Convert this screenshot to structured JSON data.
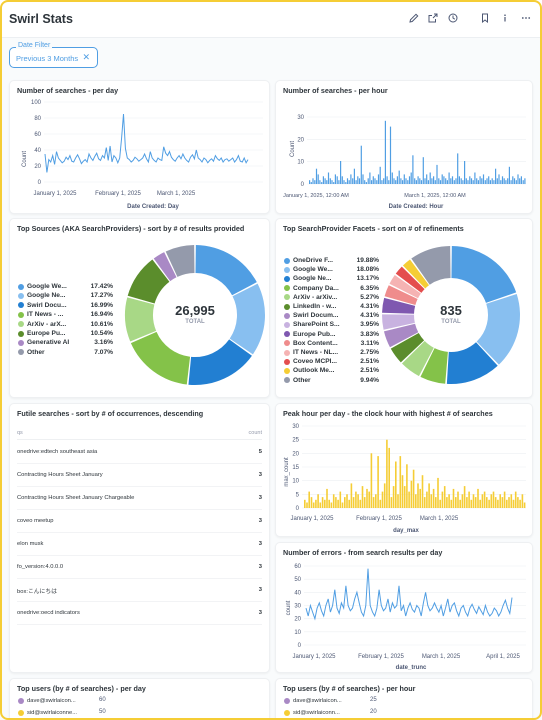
{
  "dashboard": {
    "title": "Swirl Stats"
  },
  "header_icons": [
    "pencil-icon",
    "share-icon",
    "clock-icon",
    "bookmark-icon",
    "info-icon",
    "more-icon"
  ],
  "filter": {
    "label": "Date Filter",
    "value": "Previous 3 Months",
    "clear": "✕"
  },
  "colors": {
    "accent": "#509ee3",
    "yellow": "#f5cd35",
    "text": "#2e353b"
  },
  "cards": {
    "searches_day": {
      "title": "Number of searches - per day",
      "ylabel": "Count",
      "xlabel": "Date Created: Day",
      "yticks": [
        "100",
        "80",
        "60",
        "40",
        "20",
        "0"
      ],
      "xticks": [
        "January 1, 2025",
        "February 1, 2025",
        "March 1, 2025"
      ]
    },
    "searches_hour": {
      "title": "Number of searches - per hour",
      "ylabel": "Count",
      "xlabel": "Date Created: Hour",
      "yticks": [
        "30",
        "20",
        "10",
        "0"
      ],
      "xticks": [
        "January 1, 2025, 12:00 AM",
        "March 1, 2025, 12:00 AM"
      ]
    },
    "top_sources": {
      "title": "Top Sources (AKA SearchProviders) - sort by # of results provided",
      "total_value": "26,995",
      "total_label": "TOTAL",
      "legend": [
        {
          "name": "Google We...",
          "pct": "17.42%",
          "color": "#509ee3"
        },
        {
          "name": "Google Ne...",
          "pct": "17.27%",
          "color": "#88bff0"
        },
        {
          "name": "Swirl Docu...",
          "pct": "16.99%",
          "color": "#227fd2"
        },
        {
          "name": "IT News - ...",
          "pct": "16.94%",
          "color": "#84c249"
        },
        {
          "name": "ArXiv - arX...",
          "pct": "10.61%",
          "color": "#a8d886"
        },
        {
          "name": "Europe Pu...",
          "pct": "10.54%",
          "color": "#5b8d2c"
        },
        {
          "name": "Generative AI",
          "pct": "3.16%",
          "color": "#a989c5"
        },
        {
          "name": "Other",
          "pct": "7.07%",
          "color": "#949aab"
        }
      ]
    },
    "top_facets": {
      "title": "Top SearchProvider Facets - sort on # of refinements",
      "total_value": "835",
      "total_label": "TOTAL",
      "legend": [
        {
          "name": "OneDrive F...",
          "pct": "19.88%",
          "color": "#509ee3"
        },
        {
          "name": "Google We...",
          "pct": "18.08%",
          "color": "#88bff0"
        },
        {
          "name": "Google Ne...",
          "pct": "13.17%",
          "color": "#227fd2"
        },
        {
          "name": "Company Da...",
          "pct": "6.35%",
          "color": "#84c249"
        },
        {
          "name": "ArXiv - arXiv...",
          "pct": "5.27%",
          "color": "#a8d886"
        },
        {
          "name": "LinkedIn - w...",
          "pct": "4.31%",
          "color": "#5b8d2c"
        },
        {
          "name": "Swirl Docum...",
          "pct": "4.31%",
          "color": "#a989c5"
        },
        {
          "name": "SharePoint S...",
          "pct": "3.95%",
          "color": "#c8b2e0"
        },
        {
          "name": "Europe Pub...",
          "pct": "3.83%",
          "color": "#7f58b0"
        },
        {
          "name": "Box Content...",
          "pct": "3.11%",
          "color": "#ef8c8c"
        },
        {
          "name": "IT News - NL...",
          "pct": "2.75%",
          "color": "#f5b3b3"
        },
        {
          "name": "Coveo MCPI...",
          "pct": "2.51%",
          "color": "#e44e4e"
        },
        {
          "name": "Outlook Me...",
          "pct": "2.51%",
          "color": "#f5cd35"
        },
        {
          "name": "Other",
          "pct": "9.94%",
          "color": "#949aab"
        }
      ]
    },
    "futile": {
      "title": "Futile searches - sort by # of occurrences, descending",
      "col_qs": "qs",
      "col_count": "count",
      "rows": [
        {
          "q": "onedrive:edtech southeast asia",
          "count": "5"
        },
        {
          "q": "Contracting Hours Sheet January",
          "count": "3"
        },
        {
          "q": "Contracting Hours Sheet January Chargeable",
          "count": "3"
        },
        {
          "q": "coveo meetup",
          "count": "3"
        },
        {
          "q": "elon musk",
          "count": "3"
        },
        {
          "q": "fo_version:4.0.0.0",
          "count": "3"
        },
        {
          "q": "box:こんにちは",
          "count": "3"
        },
        {
          "q": "onedrive:oecd indicators",
          "count": "3"
        }
      ]
    },
    "peak_hour": {
      "title": "Peak hour per day - the clock hour with highest # of searches",
      "ylabel": "max_count",
      "xlabel": "day_max",
      "yticks": [
        "30",
        "25",
        "20",
        "15",
        "10",
        "5",
        "0"
      ],
      "xticks": [
        "January 1, 2025",
        "February 1, 2025",
        "March 1, 2025"
      ]
    },
    "errors": {
      "title": "Number of errors - from search results per day",
      "ylabel": "count",
      "xlabel": "date_trunc",
      "yticks": [
        "60",
        "50",
        "40",
        "30",
        "20",
        "10",
        "0"
      ],
      "xticks": [
        "January 1, 2025",
        "February 1, 2025",
        "March 1, 2025",
        "April 1, 2025"
      ]
    },
    "users_day": {
      "title": "Top users (by # of searches) - per day",
      "users": [
        {
          "name": "dave@swirlaicon...",
          "color": "#a989c5"
        },
        {
          "name": "sid@swirlaiconne...",
          "color": "#f5cd35"
        }
      ],
      "yticks": [
        "60",
        "50"
      ]
    },
    "users_hour": {
      "title": "Top users (by # of searches) - per hour",
      "users": [
        {
          "name": "dave@swirlaicon...",
          "color": "#a989c5"
        },
        {
          "name": "sid@swirlaiconn...",
          "color": "#f5cd35"
        }
      ],
      "yticks": [
        "25",
        "20"
      ]
    }
  },
  "chart_data": [
    {
      "type": "line",
      "title": "Number of searches - per day",
      "xlabel": "Date Created: Day",
      "ylabel": "Count",
      "ylim": [
        0,
        100
      ],
      "x_start": "2024-12-15",
      "x_end": "2025-03-31",
      "series": [
        {
          "values": [
            35,
            12,
            28,
            25,
            33,
            22,
            38,
            30,
            27,
            24,
            26,
            31,
            28,
            33,
            26,
            25,
            30,
            34,
            29,
            23,
            26,
            28,
            25,
            35,
            30,
            27,
            32,
            36,
            29,
            27,
            33,
            30,
            43,
            27,
            45,
            25,
            33,
            30,
            24,
            30,
            55,
            85,
            42,
            30,
            28,
            25,
            27,
            31,
            29,
            26,
            28,
            30,
            35,
            29,
            25,
            38,
            30,
            27,
            25,
            30,
            28,
            27,
            44,
            36,
            33,
            38,
            31,
            28,
            26,
            30,
            33,
            29,
            35,
            30,
            27,
            25,
            31,
            34,
            29,
            40,
            30,
            28,
            25,
            30,
            28,
            24,
            27,
            29,
            26,
            33,
            29,
            27,
            30,
            25,
            28,
            29,
            26,
            28,
            30,
            25,
            28,
            33,
            26,
            25,
            30,
            24,
            28
          ]
        }
      ]
    },
    {
      "type": "bar",
      "title": "Number of searches - per hour",
      "xlabel": "Date Created: Hour",
      "ylabel": "Count",
      "ylim": [
        0,
        35
      ],
      "series": [
        {
          "values": [
            2,
            1,
            3,
            2,
            8,
            5,
            2,
            1,
            4,
            3,
            2,
            6,
            3,
            2,
            1,
            5,
            4,
            2,
            12,
            4,
            2,
            1,
            3,
            2,
            5,
            3,
            8,
            2,
            4,
            3,
            20,
            5,
            2,
            1,
            3,
            6,
            2,
            4,
            3,
            2,
            5,
            9,
            2,
            3,
            33,
            4,
            2,
            30,
            6,
            3,
            2,
            4,
            7,
            3,
            2,
            5,
            3,
            2,
            4,
            6,
            15,
            3,
            2,
            4,
            3,
            2,
            14,
            3,
            5,
            2,
            6,
            3,
            4,
            2,
            10,
            3,
            2,
            5,
            4,
            3,
            2,
            6,
            3,
            4,
            2,
            3,
            16,
            4,
            3,
            2,
            12,
            3,
            2,
            4,
            3,
            2,
            6,
            3,
            2,
            4,
            3,
            5,
            2,
            3,
            4,
            2,
            3,
            2,
            8,
            3,
            5,
            2,
            4,
            3,
            2,
            3,
            9,
            2,
            4,
            3,
            2,
            5,
            3,
            4,
            2,
            3
          ]
        }
      ]
    },
    {
      "type": "pie",
      "title": "Top Sources (AKA SearchProviders) - sort by # of results provided",
      "total": "26,995",
      "labels": [
        "Google We...",
        "Google Ne...",
        "Swirl Docu...",
        "IT News - ...",
        "ArXiv - arX...",
        "Europe Pu...",
        "Generative AI",
        "Other"
      ],
      "values": [
        17.42,
        17.27,
        16.99,
        16.94,
        10.61,
        10.54,
        3.16,
        7.07
      ]
    },
    {
      "type": "pie",
      "title": "Top SearchProvider Facets - sort on # of refinements",
      "total": "835",
      "labels": [
        "OneDrive F...",
        "Google We...",
        "Google Ne...",
        "Company Da...",
        "ArXiv - arXiv...",
        "LinkedIn - w...",
        "Swirl Docum...",
        "SharePoint S...",
        "Europe Pub...",
        "Box Content...",
        "IT News - NL...",
        "Coveo MCPI...",
        "Outlook Me...",
        "Other"
      ],
      "values": [
        19.88,
        18.08,
        13.17,
        6.35,
        5.27,
        4.31,
        4.31,
        3.95,
        3.83,
        3.11,
        2.75,
        2.51,
        2.51,
        9.94
      ]
    },
    {
      "type": "bar",
      "title": "Peak hour per day - the clock hour with highest # of searches",
      "xlabel": "day_max",
      "ylabel": "max_count",
      "ylim": [
        0,
        30
      ],
      "series": [
        {
          "values": [
            3,
            2,
            6,
            4,
            2,
            3,
            5,
            2,
            4,
            3,
            7,
            3,
            2,
            5,
            4,
            3,
            6,
            2,
            4,
            5,
            3,
            9,
            4,
            6,
            5,
            3,
            8,
            4,
            7,
            6,
            20,
            4,
            5,
            19,
            3,
            6,
            9,
            25,
            22,
            4,
            8,
            17,
            5,
            19,
            12,
            8,
            16,
            6,
            10,
            14,
            5,
            9,
            7,
            12,
            4,
            6,
            9,
            5,
            7,
            4,
            11,
            3,
            6,
            8,
            4,
            5,
            3,
            7,
            4,
            6,
            3,
            5,
            8,
            4,
            6,
            3,
            5,
            4,
            7,
            3,
            5,
            6,
            4,
            3,
            5,
            6,
            4,
            3,
            5,
            4,
            6,
            3,
            4,
            5,
            3,
            6,
            4,
            3,
            5,
            2
          ]
        }
      ]
    },
    {
      "type": "line",
      "title": "Number of errors - from search results per day",
      "xlabel": "date_trunc",
      "ylabel": "count",
      "ylim": [
        0,
        60
      ],
      "series": [
        {
          "values": [
            28,
            22,
            30,
            25,
            20,
            28,
            32,
            26,
            22,
            30,
            35,
            25,
            30,
            42,
            28,
            24,
            32,
            28,
            45,
            30,
            26,
            28,
            35,
            40,
            32,
            25,
            22,
            30,
            58,
            30,
            25,
            22,
            28,
            42,
            30,
            26,
            28,
            35,
            25,
            32,
            28,
            30,
            45,
            26,
            30,
            22,
            28,
            32,
            27,
            25,
            30,
            28,
            22,
            32,
            40,
            30,
            26,
            28,
            32,
            28,
            25,
            30,
            22,
            28,
            35,
            25,
            30,
            32,
            26,
            22,
            28,
            30,
            25,
            22,
            28,
            31,
            27,
            24,
            29,
            26,
            23,
            30,
            25,
            22,
            24,
            28,
            26,
            22,
            25,
            30,
            34,
            28,
            24,
            36
          ]
        }
      ]
    }
  ]
}
